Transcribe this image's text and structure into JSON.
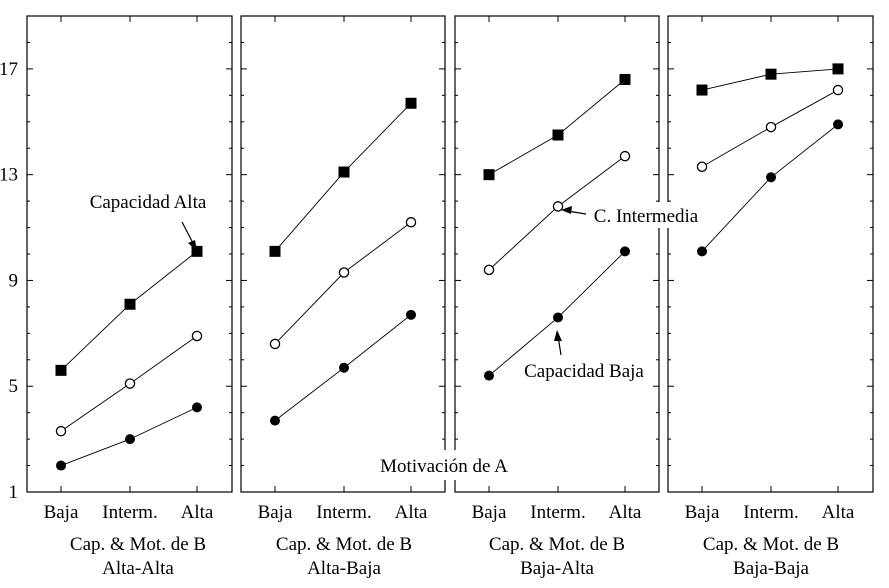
{
  "chart_data": {
    "type": "line",
    "ylim": [
      1,
      19
    ],
    "yticks": [
      1,
      5,
      9,
      13,
      17
    ],
    "xlabel": "Motivación de A",
    "categories": [
      "Baja",
      "Interm.",
      "Alta"
    ],
    "panels": [
      {
        "label_line1": "Cap. & Mot. de B",
        "label_line2": "Alta-Alta",
        "series": [
          {
            "name": "Capacidad Alta",
            "marker": "filled-square",
            "values": [
              5.6,
              8.1,
              10.1
            ]
          },
          {
            "name": "C. Intermedia",
            "marker": "open-circle",
            "values": [
              3.3,
              5.1,
              6.9
            ]
          },
          {
            "name": "Capacidad Baja",
            "marker": "filled-circle",
            "values": [
              2.0,
              3.0,
              4.2
            ]
          }
        ]
      },
      {
        "label_line1": "Cap. & Mot. de B",
        "label_line2": "Alta-Baja",
        "series": [
          {
            "name": "Capacidad Alta",
            "marker": "filled-square",
            "values": [
              10.1,
              13.1,
              15.7
            ]
          },
          {
            "name": "C. Intermedia",
            "marker": "open-circle",
            "values": [
              6.6,
              9.3,
              11.2
            ]
          },
          {
            "name": "Capacidad Baja",
            "marker": "filled-circle",
            "values": [
              3.7,
              5.7,
              7.7
            ]
          }
        ]
      },
      {
        "label_line1": "Cap. & Mot. de B",
        "label_line2": "Baja-Alta",
        "series": [
          {
            "name": "Capacidad Alta",
            "marker": "filled-square",
            "values": [
              13.0,
              14.5,
              16.6
            ]
          },
          {
            "name": "C. Intermedia",
            "marker": "open-circle",
            "values": [
              9.4,
              11.8,
              13.7
            ]
          },
          {
            "name": "Capacidad Baja",
            "marker": "filled-circle",
            "values": [
              5.4,
              7.6,
              10.1
            ]
          }
        ]
      },
      {
        "label_line1": "Cap. & Mot. de B",
        "label_line2": "Baja-Baja",
        "series": [
          {
            "name": "Capacidad Alta",
            "marker": "filled-square",
            "values": [
              16.2,
              16.8,
              17.0
            ]
          },
          {
            "name": "C. Intermedia",
            "marker": "open-circle",
            "values": [
              13.3,
              14.8,
              16.2
            ]
          },
          {
            "name": "Capacidad Baja",
            "marker": "filled-circle",
            "values": [
              10.1,
              12.9,
              14.9
            ]
          }
        ]
      }
    ],
    "annotations": [
      {
        "text": "Capacidad Alta",
        "panel": 0,
        "series": "Capacidad Alta",
        "point": 2
      },
      {
        "text": "C. Intermedia",
        "panel": 2,
        "series": "C. Intermedia",
        "point": 1
      },
      {
        "text": "Capacidad Baja",
        "panel": 2,
        "series": "Capacidad Baja",
        "point": 1
      }
    ]
  }
}
